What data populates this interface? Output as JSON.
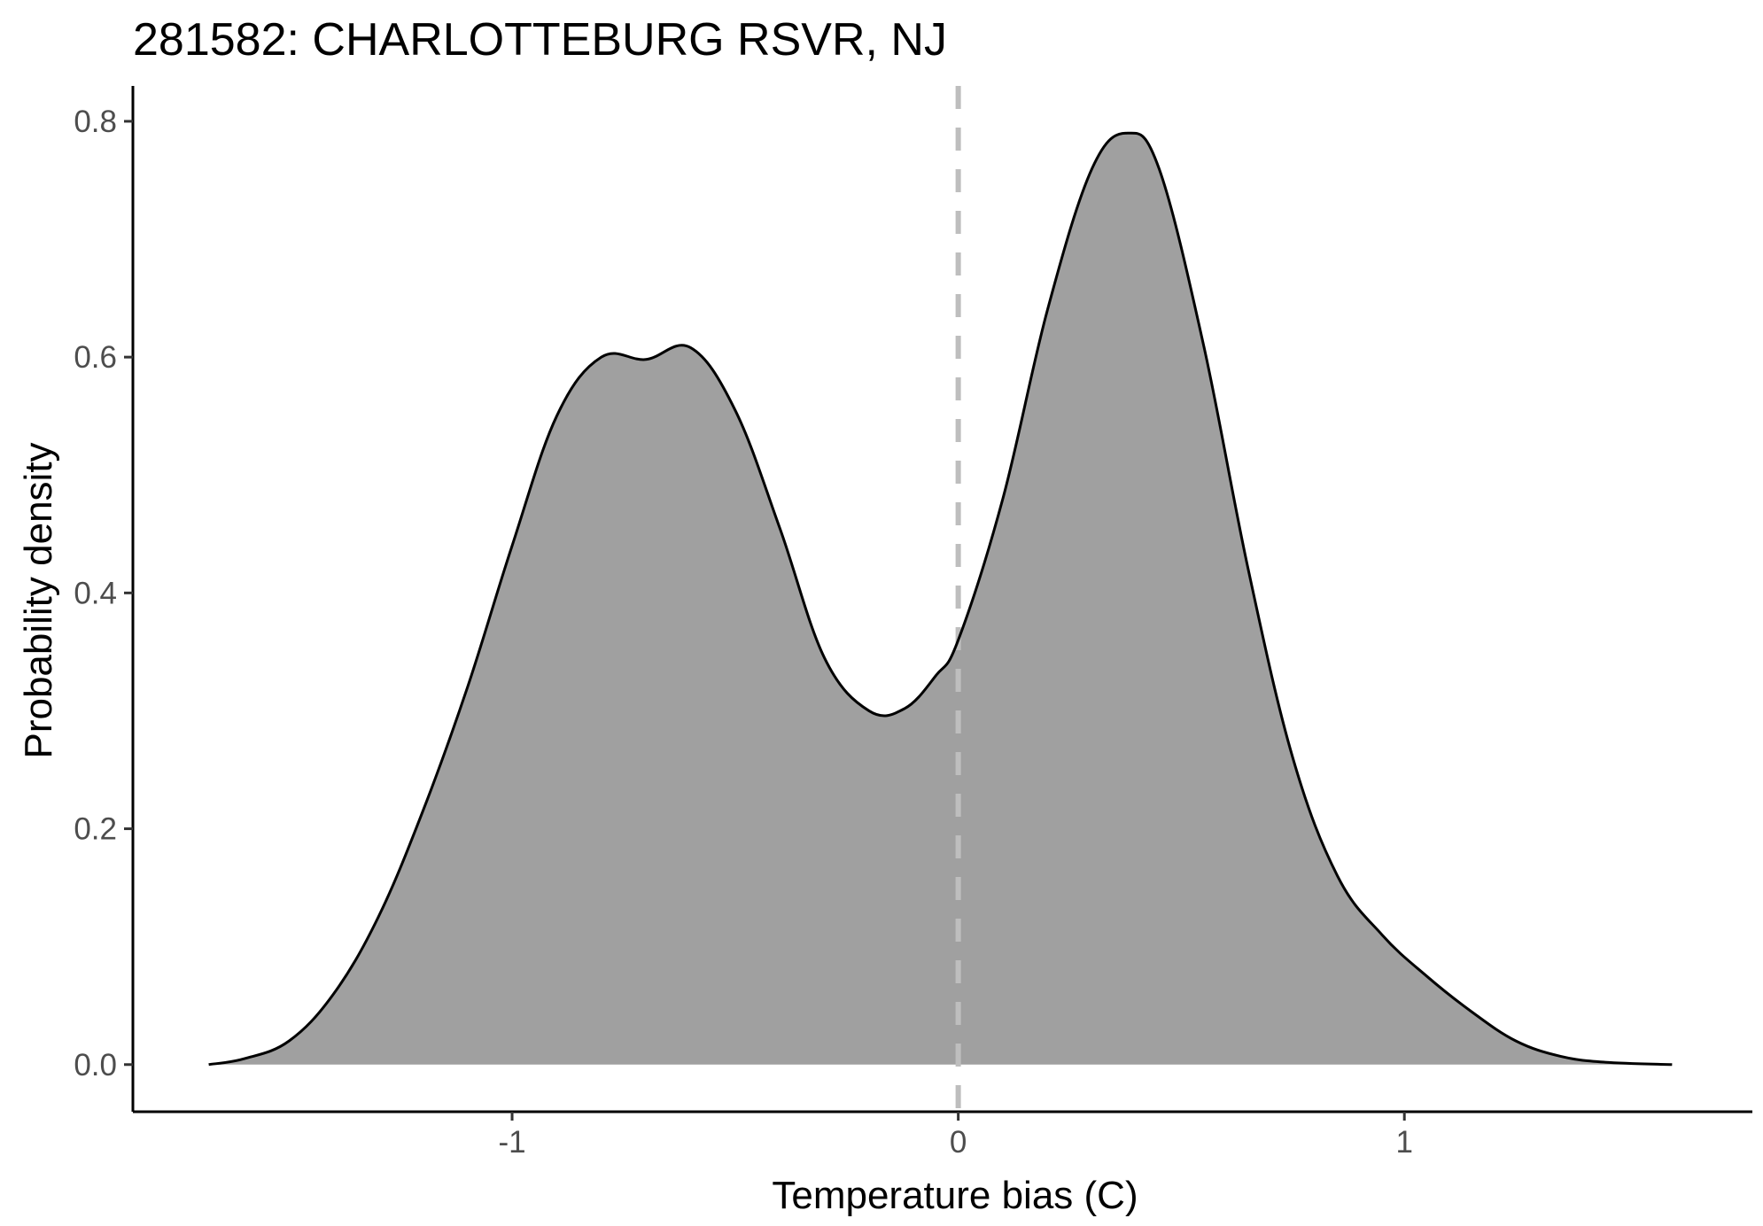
{
  "chart_data": {
    "type": "area",
    "title": "281582: CHARLOTTEBURG RSVR, NJ",
    "xlabel": "Temperature bias (C)",
    "ylabel": "Probability density",
    "xlim": [
      -1.85,
      1.78
    ],
    "ylim": [
      -0.04,
      0.83
    ],
    "x_ticks": [
      -1,
      0,
      1
    ],
    "x_tick_labels": [
      "-1",
      "0",
      "1"
    ],
    "y_ticks": [
      0.0,
      0.2,
      0.4,
      0.6,
      0.8
    ],
    "y_tick_labels": [
      "0.0",
      "0.2",
      "0.4",
      "0.6",
      "0.8"
    ],
    "reference_line": {
      "x": 0,
      "style": "dashed",
      "color": "#bebebe"
    },
    "fill_color": "#a0a0a0",
    "line_color": "#000000",
    "grid": false,
    "legend": "none",
    "series": [
      {
        "x": [
          -1.68,
          -1.6,
          -1.5,
          -1.4,
          -1.3,
          -1.2,
          -1.1,
          -1.0,
          -0.9,
          -0.8,
          -0.7,
          -0.6,
          -0.5,
          -0.4,
          -0.3,
          -0.2,
          -0.12,
          -0.05,
          0.0,
          0.1,
          0.2,
          0.3,
          0.38,
          0.45,
          0.55,
          0.65,
          0.75,
          0.85,
          0.95,
          1.05,
          1.15,
          1.25,
          1.35,
          1.45,
          1.6
        ],
        "y": [
          0.0,
          0.005,
          0.02,
          0.06,
          0.125,
          0.215,
          0.32,
          0.44,
          0.55,
          0.6,
          0.598,
          0.608,
          0.555,
          0.455,
          0.345,
          0.3,
          0.302,
          0.33,
          0.36,
          0.48,
          0.64,
          0.76,
          0.79,
          0.76,
          0.61,
          0.42,
          0.26,
          0.16,
          0.11,
          0.075,
          0.045,
          0.02,
          0.007,
          0.002,
          0.0
        ]
      }
    ]
  }
}
